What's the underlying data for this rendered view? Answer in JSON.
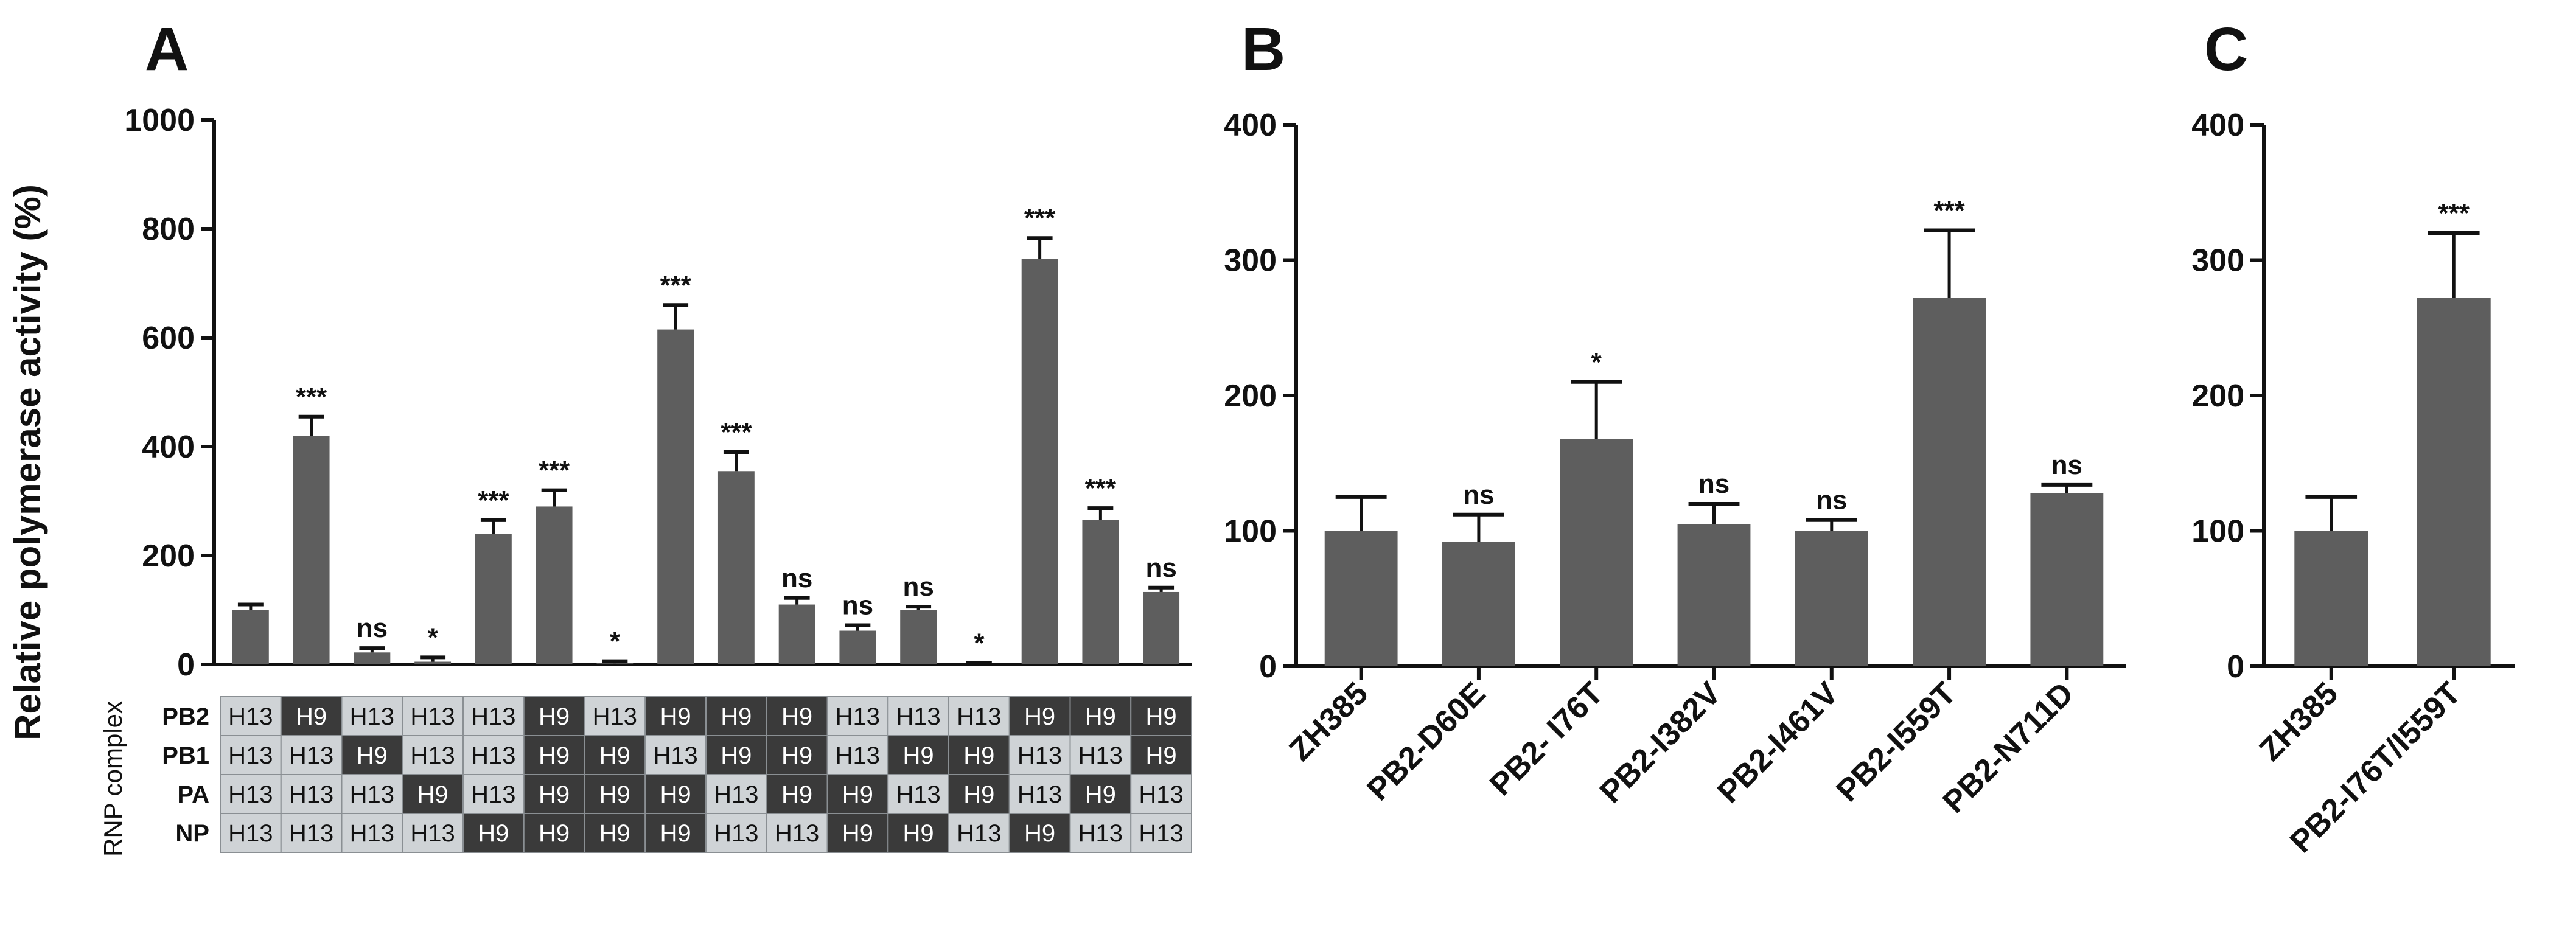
{
  "colors": {
    "bar": "#5e5e5e",
    "axis": "#111111",
    "h9_cell": "#3a3a3a",
    "h13_cell": "#cfd3d6",
    "h9_text": "#ffffff",
    "h13_text": "#111111"
  },
  "chart_data": [
    {
      "panel": "A",
      "type": "bar",
      "ylabel": "Relative polymerase activity (%)",
      "ylim": [
        0,
        1000
      ],
      "yticks": [
        0,
        200,
        400,
        600,
        800,
        1000
      ],
      "values": [
        100,
        420,
        22,
        5,
        240,
        290,
        2,
        615,
        355,
        110,
        62,
        100,
        1,
        745,
        265,
        133
      ],
      "errors": [
        10,
        35,
        8,
        8,
        25,
        30,
        4,
        45,
        35,
        12,
        10,
        6,
        2,
        38,
        22,
        8
      ],
      "significance": [
        "",
        "***",
        "ns",
        "*",
        "***",
        "***",
        "*",
        "***",
        "***",
        "ns",
        "ns",
        "ns",
        "*",
        "***",
        "***",
        "ns"
      ],
      "rnp_label": "RNP complex",
      "rnp_rows": [
        {
          "name": "PB2",
          "cells": [
            "H13",
            "H9",
            "H13",
            "H13",
            "H13",
            "H9",
            "H13",
            "H9",
            "H9",
            "H9",
            "H13",
            "H13",
            "H13",
            "H9",
            "H9",
            "H9"
          ]
        },
        {
          "name": "PB1",
          "cells": [
            "H13",
            "H13",
            "H9",
            "H13",
            "H13",
            "H9",
            "H9",
            "H13",
            "H9",
            "H9",
            "H13",
            "H9",
            "H9",
            "H13",
            "H13",
            "H9"
          ]
        },
        {
          "name": "PA",
          "cells": [
            "H13",
            "H13",
            "H13",
            "H9",
            "H13",
            "H9",
            "H9",
            "H9",
            "H13",
            "H9",
            "H9",
            "H13",
            "H9",
            "H13",
            "H9",
            "H13"
          ]
        },
        {
          "name": "NP",
          "cells": [
            "H13",
            "H13",
            "H13",
            "H13",
            "H9",
            "H9",
            "H9",
            "H9",
            "H13",
            "H13",
            "H9",
            "H9",
            "H13",
            "H9",
            "H13",
            "H13"
          ]
        }
      ]
    },
    {
      "panel": "B",
      "type": "bar",
      "ylim": [
        0,
        400
      ],
      "yticks": [
        0,
        100,
        200,
        300,
        400
      ],
      "categories": [
        "ZH385",
        "PB2-D60E",
        "PB2- I76T",
        "PB2-I382V",
        "PB2-I461V",
        "PB2-I559T",
        "PB2-N711D"
      ],
      "values": [
        100,
        92,
        168,
        105,
        100,
        272,
        128
      ],
      "errors": [
        25,
        20,
        42,
        15,
        8,
        50,
        6
      ],
      "significance": [
        "",
        "ns",
        "*",
        "ns",
        "ns",
        "***",
        "ns"
      ]
    },
    {
      "panel": "C",
      "type": "bar",
      "ylim": [
        0,
        400
      ],
      "yticks": [
        0,
        100,
        200,
        300,
        400
      ],
      "categories": [
        "ZH385",
        "PB2-I76T/I559T"
      ],
      "values": [
        100,
        272
      ],
      "errors": [
        25,
        48
      ],
      "significance": [
        "",
        "***"
      ]
    }
  ]
}
